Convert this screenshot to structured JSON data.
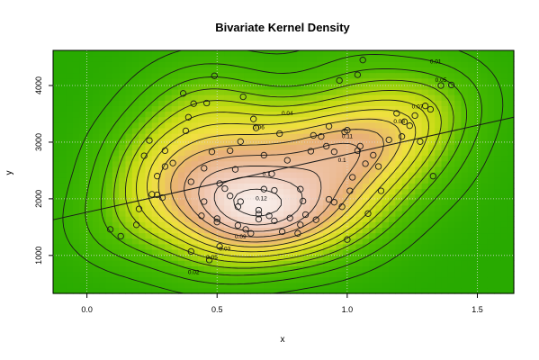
{
  "chart_data": {
    "type": "contour",
    "title": "Bivariate Kernel Density",
    "xlabel": "x",
    "ylabel": "y",
    "xlim": [
      -0.13,
      1.64
    ],
    "ylim": [
      330,
      4620
    ],
    "x_ticks": [
      0.0,
      0.5,
      1.0,
      1.5
    ],
    "x_tick_labels": [
      "0.0",
      "0.5",
      "1.0",
      "1.5"
    ],
    "y_ticks": [
      1000,
      2000,
      3000,
      4000
    ],
    "y_tick_labels": [
      "1000",
      "2000",
      "3000",
      "4000"
    ],
    "grid": true,
    "colors": {
      "low": "#28b400",
      "mid_low": "#c8dc14",
      "mid": "#f0e040",
      "mid_high": "#e8b078",
      "high": "#f7ece8",
      "grid": "#d9d9d9",
      "line": "#1a1a1a",
      "regression": "#1a1a1a"
    },
    "contour_levels": [
      0.01,
      0.02,
      0.03,
      0.04,
      0.05,
      0.06,
      0.07,
      0.08,
      0.09,
      0.1,
      0.11,
      0.12,
      0.13
    ],
    "contour_labels": [
      {
        "text": "0.01",
        "x": 1.34,
        "y": 4420
      },
      {
        "text": "0.02",
        "x": 0.41,
        "y": 700
      },
      {
        "text": "0.03",
        "x": 0.53,
        "y": 1110
      },
      {
        "text": "0.04",
        "x": 0.77,
        "y": 3500
      },
      {
        "text": "0.05",
        "x": 1.36,
        "y": 4090
      },
      {
        "text": "0.05",
        "x": 0.48,
        "y": 960
      },
      {
        "text": "0.06",
        "x": 0.66,
        "y": 3260
      },
      {
        "text": "0.07",
        "x": 1.27,
        "y": 3620
      },
      {
        "text": "0.08",
        "x": 1.2,
        "y": 3360
      },
      {
        "text": "0.09",
        "x": 0.59,
        "y": 1330
      },
      {
        "text": "0.1",
        "x": 0.69,
        "y": 2430
      },
      {
        "text": "0.1",
        "x": 0.98,
        "y": 2680
      },
      {
        "text": "0.11",
        "x": 1.0,
        "y": 3100
      },
      {
        "text": "0.12",
        "x": 0.67,
        "y": 2000
      }
    ],
    "regression_line": {
      "x": [
        -0.13,
        1.64
      ],
      "y": [
        1630,
        3440
      ]
    },
    "points": [
      [
        0.09,
        1460
      ],
      [
        0.13,
        1340
      ],
      [
        0.19,
        1540
      ],
      [
        0.2,
        1820
      ],
      [
        0.22,
        2760
      ],
      [
        0.24,
        3030
      ],
      [
        0.25,
        2080
      ],
      [
        0.27,
        2400
      ],
      [
        0.27,
        2070
      ],
      [
        0.29,
        2020
      ],
      [
        0.3,
        2570
      ],
      [
        0.3,
        2850
      ],
      [
        0.33,
        2630
      ],
      [
        0.37,
        3860
      ],
      [
        0.38,
        3200
      ],
      [
        0.39,
        3440
      ],
      [
        0.4,
        2300
      ],
      [
        0.4,
        1070
      ],
      [
        0.41,
        3680
      ],
      [
        0.44,
        1700
      ],
      [
        0.45,
        2540
      ],
      [
        0.45,
        1950
      ],
      [
        0.46,
        3690
      ],
      [
        0.47,
        920
      ],
      [
        0.48,
        2830
      ],
      [
        0.49,
        4170
      ],
      [
        0.5,
        1650
      ],
      [
        0.5,
        1590
      ],
      [
        0.51,
        2270
      ],
      [
        0.51,
        1160
      ],
      [
        0.53,
        2180
      ],
      [
        0.55,
        2050
      ],
      [
        0.55,
        2850
      ],
      [
        0.57,
        2520
      ],
      [
        0.58,
        1860
      ],
      [
        0.58,
        1530
      ],
      [
        0.59,
        3010
      ],
      [
        0.59,
        1950
      ],
      [
        0.6,
        3800
      ],
      [
        0.61,
        1460
      ],
      [
        0.63,
        1390
      ],
      [
        0.64,
        3410
      ],
      [
        0.65,
        3250
      ],
      [
        0.66,
        1800
      ],
      [
        0.66,
        1730
      ],
      [
        0.66,
        1640
      ],
      [
        0.68,
        2770
      ],
      [
        0.68,
        2170
      ],
      [
        0.7,
        1700
      ],
      [
        0.71,
        2440
      ],
      [
        0.72,
        2150
      ],
      [
        0.72,
        1610
      ],
      [
        0.74,
        3150
      ],
      [
        0.75,
        1420
      ],
      [
        0.77,
        2680
      ],
      [
        0.78,
        1660
      ],
      [
        0.81,
        1390
      ],
      [
        0.82,
        2170
      ],
      [
        0.82,
        1540
      ],
      [
        0.83,
        1960
      ],
      [
        0.84,
        1720
      ],
      [
        0.86,
        2840
      ],
      [
        0.87,
        3120
      ],
      [
        0.88,
        1630
      ],
      [
        0.9,
        3100
      ],
      [
        0.92,
        2930
      ],
      [
        0.93,
        3280
      ],
      [
        0.93,
        1990
      ],
      [
        0.95,
        2830
      ],
      [
        0.95,
        1940
      ],
      [
        0.97,
        4090
      ],
      [
        0.98,
        1860
      ],
      [
        0.99,
        3180
      ],
      [
        1.0,
        3210
      ],
      [
        1.0,
        1280
      ],
      [
        1.01,
        2140
      ],
      [
        1.02,
        2380
      ],
      [
        1.04,
        4190
      ],
      [
        1.04,
        2850
      ],
      [
        1.05,
        2930
      ],
      [
        1.06,
        4450
      ],
      [
        1.07,
        2620
      ],
      [
        1.08,
        1740
      ],
      [
        1.1,
        2770
      ],
      [
        1.12,
        2570
      ],
      [
        1.13,
        2140
      ],
      [
        1.16,
        3040
      ],
      [
        1.19,
        3510
      ],
      [
        1.21,
        3100
      ],
      [
        1.22,
        3360
      ],
      [
        1.24,
        3290
      ],
      [
        1.26,
        3470
      ],
      [
        1.28,
        3010
      ],
      [
        1.3,
        3640
      ],
      [
        1.32,
        3580
      ],
      [
        1.33,
        2400
      ],
      [
        1.36,
        4000
      ],
      [
        1.4,
        4010
      ]
    ]
  }
}
